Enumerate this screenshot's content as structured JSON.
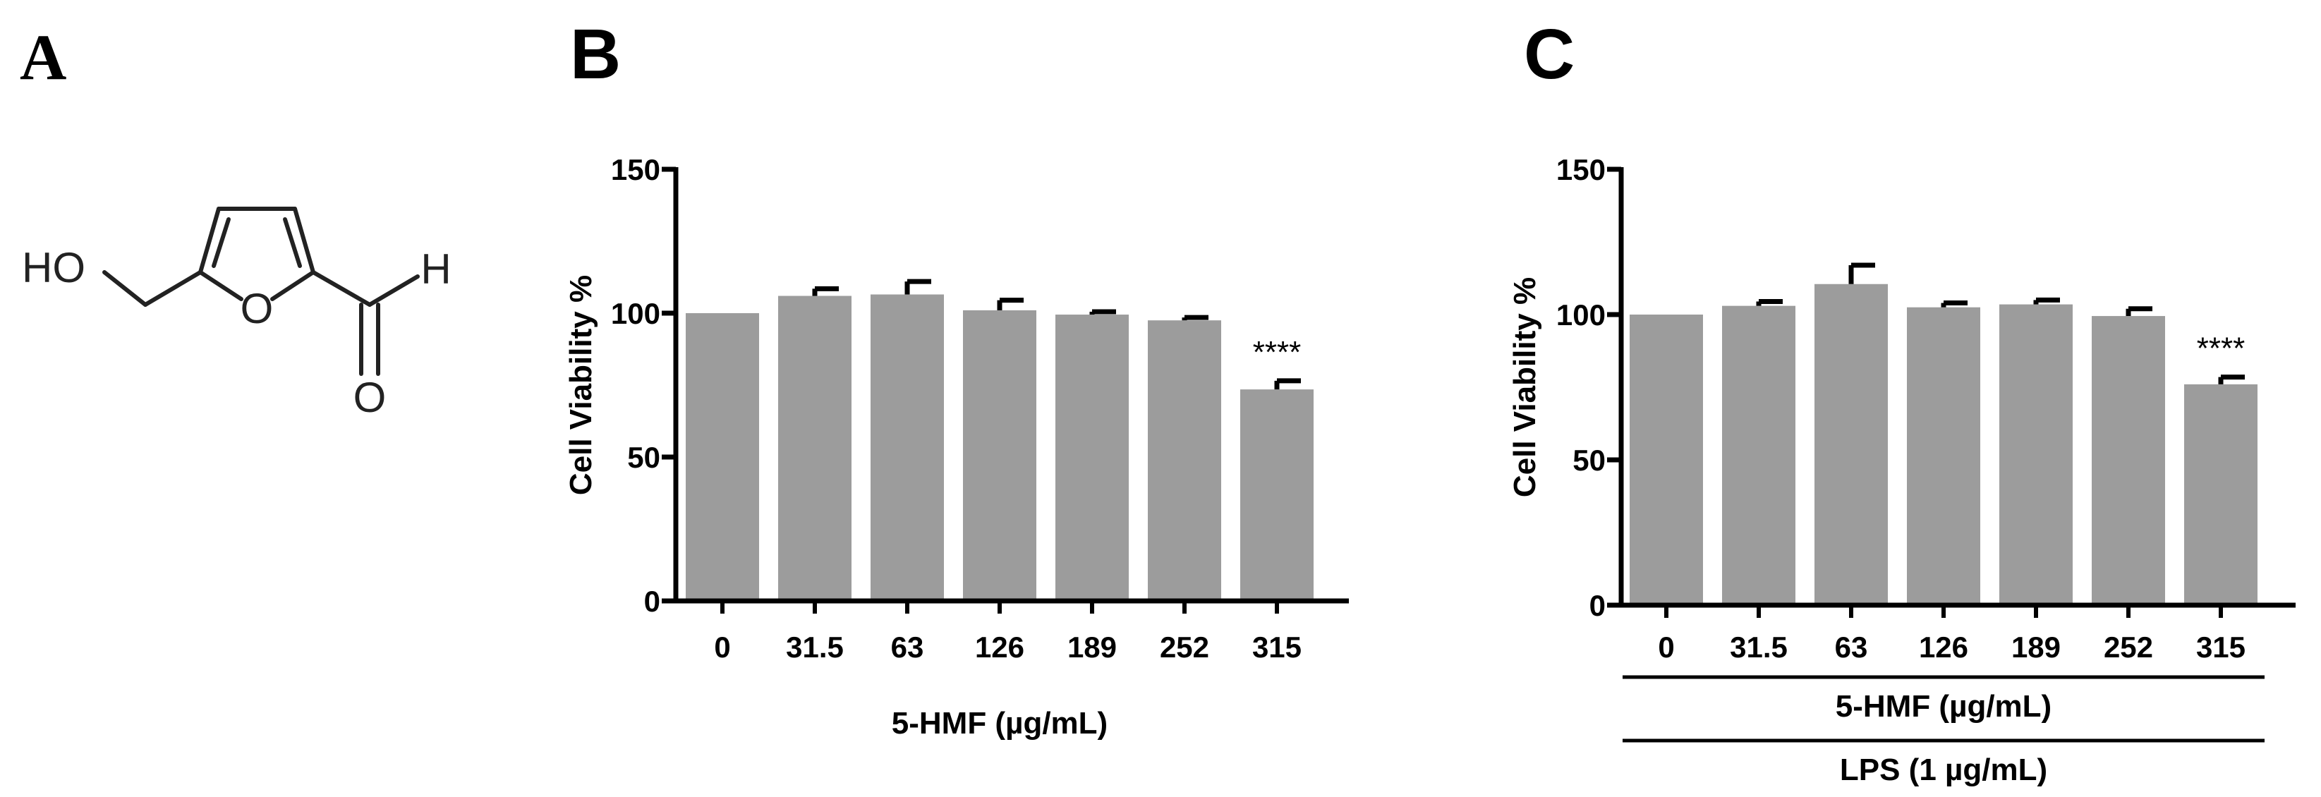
{
  "panels": {
    "a": {
      "letter": "A"
    },
    "b": {
      "letter": "B"
    },
    "c": {
      "letter": "C"
    }
  },
  "molecule": {
    "atoms": {
      "ho": "HO",
      "o_ring": "O",
      "h": "H",
      "o_carbonyl": "O"
    }
  },
  "colors": {
    "bar": "#9c9c9c",
    "axis": "#000000",
    "error": "#000000"
  },
  "chart_data": [
    {
      "type": "bar",
      "panel": "B",
      "categories": [
        "0",
        "31.5",
        "63",
        "126",
        "189",
        "252",
        "315"
      ],
      "values": [
        100,
        106,
        106.5,
        101,
        99.5,
        97.5,
        73.5
      ],
      "errors": [
        0,
        2.5,
        4.5,
        3.5,
        1,
        1,
        3
      ],
      "annotations": [
        "",
        "",
        "",
        "",
        "",
        "",
        "****"
      ],
      "ylabel": "Cell Viability %",
      "xlabel": "5-HMF (µg/mL)",
      "ylim": [
        0,
        150
      ],
      "yticks": [
        0,
        50,
        100,
        150
      ],
      "ytick_labels": [
        "0",
        "50",
        "100",
        "150"
      ],
      "grid": false,
      "legend": "none"
    },
    {
      "type": "bar",
      "panel": "C",
      "categories": [
        "0",
        "31.5",
        "63",
        "126",
        "189",
        "252",
        "315"
      ],
      "values": [
        100,
        103,
        110.5,
        102.5,
        103.5,
        99.5,
        76
      ],
      "errors": [
        0,
        1.5,
        6.5,
        1.5,
        1.5,
        2.5,
        2.5
      ],
      "annotations": [
        "",
        "",
        "",
        "",
        "",
        "",
        "****"
      ],
      "ylabel": "Cell Viability %",
      "xlabel_lines": [
        "5-HMF (µg/mL)",
        "LPS (1 µg/mL)"
      ],
      "ylim": [
        0,
        150
      ],
      "yticks": [
        0,
        50,
        100,
        150
      ],
      "ytick_labels": [
        "0",
        "50",
        "100",
        "150"
      ],
      "grid": false,
      "legend": "none"
    }
  ]
}
